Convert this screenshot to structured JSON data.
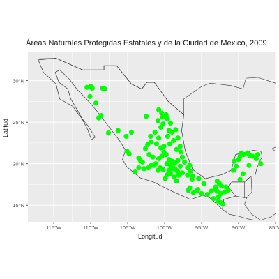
{
  "title": "Áreas Naturales Protegidas Estatales y de la Ciudad de México, 2009",
  "chart_data": {
    "type": "scatter",
    "title": "Áreas Naturales Protegidas Estatales y de la Ciudad de México, 2009",
    "xlabel": "Longitud",
    "ylabel": "Latitud",
    "xlim": [
      -118.5,
      -85
    ],
    "ylim": [
      13,
      33.5
    ],
    "x_ticks": [
      {
        "value": -115,
        "label": "115°W"
      },
      {
        "value": -110,
        "label": "110°W"
      },
      {
        "value": -105,
        "label": "105°W"
      },
      {
        "value": -100,
        "label": "100°W"
      },
      {
        "value": -95,
        "label": "95°W"
      },
      {
        "value": -90,
        "label": "90°W"
      },
      {
        "value": -85,
        "label": "85°W"
      }
    ],
    "y_ticks": [
      {
        "value": 15,
        "label": "15°N"
      },
      {
        "value": 20,
        "label": "20°N"
      },
      {
        "value": 25,
        "label": "25°N"
      },
      {
        "value": 30,
        "label": "30°N"
      }
    ],
    "grid": true,
    "panel_background": "#ebebeb",
    "grid_color": "#ffffff",
    "point_color": "#00ff00",
    "border_color": "#333333",
    "mexico_outline": [
      [
        -117.1,
        32.5
      ],
      [
        -114.7,
        32.7
      ],
      [
        -111.1,
        31.3
      ],
      [
        -108.2,
        31.3
      ],
      [
        -108.2,
        31.8
      ],
      [
        -106.5,
        31.8
      ],
      [
        -104.5,
        29.6
      ],
      [
        -103.1,
        29.0
      ],
      [
        -102.4,
        29.8
      ],
      [
        -101.4,
        29.8
      ],
      [
        -99.5,
        27.5
      ],
      [
        -97.4,
        25.9
      ],
      [
        -97.7,
        24.0
      ],
      [
        -97.2,
        21.5
      ],
      [
        -96.2,
        19.3
      ],
      [
        -94.5,
        18.2
      ],
      [
        -92.2,
        18.7
      ],
      [
        -91.0,
        19.2
      ],
      [
        -90.5,
        20.8
      ],
      [
        -90.4,
        21.1
      ],
      [
        -88.0,
        21.6
      ],
      [
        -87.0,
        21.5
      ],
      [
        -86.8,
        20.9
      ],
      [
        -87.5,
        19.5
      ],
      [
        -87.8,
        18.5
      ],
      [
        -88.3,
        18.5
      ],
      [
        -89.2,
        17.8
      ],
      [
        -90.9,
        17.8
      ],
      [
        -91.4,
        17.2
      ],
      [
        -90.4,
        16.1
      ],
      [
        -92.0,
        15.7
      ],
      [
        -92.2,
        14.5
      ],
      [
        -93.9,
        15.9
      ],
      [
        -94.8,
        16.2
      ],
      [
        -96.5,
        15.7
      ],
      [
        -98.8,
        16.6
      ],
      [
        -101.5,
        17.8
      ],
      [
        -103.3,
        18.3
      ],
      [
        -105.1,
        19.6
      ],
      [
        -105.7,
        20.5
      ],
      [
        -105.3,
        21.6
      ],
      [
        -106.1,
        22.8
      ],
      [
        -107.5,
        24.4
      ],
      [
        -109.3,
        26.5
      ],
      [
        -110.6,
        27.8
      ],
      [
        -111.8,
        28.9
      ],
      [
        -112.9,
        30.2
      ],
      [
        -114.2,
        31.3
      ],
      [
        -114.8,
        31.0
      ],
      [
        -114.3,
        29.8
      ],
      [
        -113.1,
        29.0
      ],
      [
        -112.7,
        27.8
      ],
      [
        -111.7,
        26.3
      ],
      [
        -110.4,
        24.1
      ],
      [
        -109.9,
        22.9
      ],
      [
        -109.4,
        23.2
      ],
      [
        -110.4,
        24.6
      ],
      [
        -111.6,
        25.9
      ],
      [
        -112.4,
        26.9
      ],
      [
        -114.2,
        27.8
      ],
      [
        -114.7,
        29.6
      ],
      [
        -116.4,
        31.0
      ],
      [
        -117.1,
        32.5
      ]
    ],
    "neighbor_lines": [
      [
        [
          -118.5,
          32.6
        ],
        [
          -114.7,
          32.7
        ],
        [
          -111.1,
          31.3
        ],
        [
          -108.2,
          31.3
        ],
        [
          -108.2,
          31.8
        ],
        [
          -106.5,
          31.8
        ],
        [
          -104.5,
          29.6
        ],
        [
          -103.1,
          29.0
        ],
        [
          -102.4,
          29.8
        ],
        [
          -101.4,
          29.8
        ],
        [
          -99.5,
          27.5
        ],
        [
          -97.4,
          25.9
        ],
        [
          -97.4,
          27.8
        ],
        [
          -95.0,
          29.3
        ],
        [
          -93.8,
          29.7
        ],
        [
          -91.0,
          29.4
        ],
        [
          -89.4,
          29.0
        ],
        [
          -89.0,
          30.3
        ],
        [
          -87.4,
          30.4
        ],
        [
          -85.0,
          29.7
        ]
      ],
      [
        [
          -88.3,
          18.5
        ],
        [
          -88.2,
          16.6
        ],
        [
          -88.9,
          15.9
        ],
        [
          -89.2,
          15.1
        ],
        [
          -88.2,
          13.9
        ],
        [
          -87.0,
          13.2
        ],
        [
          -85.6,
          13.6
        ],
        [
          -85.0,
          14.0
        ]
      ],
      [
        [
          -89.2,
          17.8
        ],
        [
          -89.2,
          15.9
        ],
        [
          -88.9,
          15.9
        ]
      ],
      [
        [
          -90.4,
          16.1
        ],
        [
          -89.2,
          15.9
        ]
      ],
      [
        [
          -92.2,
          14.5
        ],
        [
          -91.2,
          13.9
        ],
        [
          -90.1,
          13.7
        ],
        [
          -89.3,
          13.5
        ],
        [
          -88.5,
          13.3
        ],
        [
          -87.8,
          13.2
        ]
      ],
      [
        [
          -85.0,
          22.0
        ],
        [
          -85.5,
          21.8
        ],
        [
          -85.0,
          21.5
        ]
      ]
    ],
    "points": [
      [
        -110.5,
        29.2
      ],
      [
        -110.0,
        29.3
      ],
      [
        -109.8,
        29.1
      ],
      [
        -108.4,
        29.1
      ],
      [
        -108.1,
        29.0
      ],
      [
        -110.1,
        28.1
      ],
      [
        -109.3,
        27.3
      ],
      [
        -108.6,
        25.8
      ],
      [
        -108.9,
        25.5
      ],
      [
        -107.6,
        23.7
      ],
      [
        -106.3,
        24.0
      ],
      [
        -105.2,
        23.3
      ],
      [
        -104.5,
        23.8
      ],
      [
        -105.1,
        21.5
      ],
      [
        -104.8,
        21.2
      ],
      [
        -103.5,
        20.7
      ],
      [
        -103.3,
        20.4
      ],
      [
        -103.0,
        20.2
      ],
      [
        -103.5,
        19.5
      ],
      [
        -104.0,
        19.0
      ],
      [
        -102.8,
        19.4
      ],
      [
        -102.2,
        19.5
      ],
      [
        -101.8,
        19.8
      ],
      [
        -101.4,
        19.8
      ],
      [
        -101.2,
        20.0
      ],
      [
        -101.6,
        20.8
      ],
      [
        -102.1,
        21.1
      ],
      [
        -102.6,
        21.8
      ],
      [
        -102.3,
        22.3
      ],
      [
        -101.8,
        22.6
      ],
      [
        -101.9,
        23.3
      ],
      [
        -101.3,
        23.8
      ],
      [
        -100.5,
        24.4
      ],
      [
        -100.9,
        25.2
      ],
      [
        -100.3,
        25.6
      ],
      [
        -99.8,
        25.9
      ],
      [
        -99.6,
        25.4
      ],
      [
        -99.2,
        24.9
      ],
      [
        -100.2,
        24.8
      ],
      [
        -100.4,
        26.1
      ],
      [
        -100.8,
        26.5
      ],
      [
        -99.4,
        24.0
      ],
      [
        -99.0,
        23.8
      ],
      [
        -99.6,
        23.3
      ],
      [
        -98.8,
        22.8
      ],
      [
        -99.3,
        22.4
      ],
      [
        -100.1,
        22.1
      ],
      [
        -100.5,
        21.9
      ],
      [
        -100.1,
        21.4
      ],
      [
        -99.8,
        21.1
      ],
      [
        -100.4,
        20.9
      ],
      [
        -100.8,
        20.6
      ],
      [
        -99.4,
        20.5
      ],
      [
        -99.0,
        20.3
      ],
      [
        -98.6,
        20.1
      ],
      [
        -99.7,
        20.0
      ],
      [
        -99.2,
        19.8
      ],
      [
        -98.9,
        19.6
      ],
      [
        -99.1,
        19.3
      ],
      [
        -99.4,
        19.2
      ],
      [
        -98.5,
        19.3
      ],
      [
        -98.2,
        19.0
      ],
      [
        -97.9,
        19.7
      ],
      [
        -97.6,
        18.9
      ],
      [
        -98.1,
        18.6
      ],
      [
        -98.7,
        18.4
      ],
      [
        -99.2,
        18.8
      ],
      [
        -99.6,
        18.7
      ],
      [
        -100.2,
        19.3
      ],
      [
        -100.6,
        19.5
      ],
      [
        -100.9,
        19.2
      ],
      [
        -99.9,
        18.2
      ],
      [
        -98.4,
        17.9
      ],
      [
        -98.2,
        20.4
      ],
      [
        -97.6,
        20.8
      ],
      [
        -97.3,
        20.2
      ],
      [
        -97.8,
        21.4
      ],
      [
        -98.4,
        21.7
      ],
      [
        -97.9,
        22.1
      ],
      [
        -98.2,
        23.1
      ],
      [
        -98.5,
        24.1
      ],
      [
        -102.5,
        25.7
      ],
      [
        -96.6,
        19.8
      ],
      [
        -96.9,
        19.5
      ],
      [
        -96.5,
        19.1
      ],
      [
        -96.9,
        18.6
      ],
      [
        -96.3,
        18.1
      ],
      [
        -96.6,
        17.1
      ],
      [
        -96.8,
        16.8
      ],
      [
        -96.1,
        16.5
      ],
      [
        -95.6,
        16.7
      ],
      [
        -95.0,
        16.4
      ],
      [
        -94.2,
        16.3
      ],
      [
        -93.7,
        16.7
      ],
      [
        -93.2,
        16.9
      ],
      [
        -92.9,
        16.7
      ],
      [
        -92.4,
        16.4
      ],
      [
        -92.7,
        16.0
      ],
      [
        -92.8,
        15.5
      ],
      [
        -92.4,
        15.3
      ],
      [
        -92.1,
        15.1
      ],
      [
        -93.4,
        15.8
      ],
      [
        -94.7,
        17.6
      ],
      [
        -93.1,
        17.2
      ],
      [
        -92.3,
        17.3
      ],
      [
        -91.7,
        17.2
      ],
      [
        -92.9,
        17.9
      ],
      [
        -92.6,
        17.6
      ],
      [
        -91.9,
        16.6
      ],
      [
        -91.4,
        16.8
      ],
      [
        -90.7,
        19.2
      ],
      [
        -90.3,
        19.7
      ],
      [
        -90.6,
        20.3
      ],
      [
        -90.0,
        20.5
      ],
      [
        -89.8,
        20.9
      ],
      [
        -89.3,
        21.1
      ],
      [
        -89.6,
        21.3
      ],
      [
        -88.8,
        21.3
      ],
      [
        -88.5,
        21.0
      ],
      [
        -88.1,
        20.9
      ],
      [
        -87.4,
        21.1
      ],
      [
        -87.6,
        20.6
      ],
      [
        -87.0,
        20.0
      ],
      [
        -88.6,
        19.8
      ],
      [
        -89.4,
        18.8
      ],
      [
        -89.8,
        18.1
      ],
      [
        -96.2,
        18.5
      ],
      [
        -95.4,
        18.2
      ],
      [
        -101.1,
        22.4
      ],
      [
        -100.8,
        23.1
      ],
      [
        -95.5,
        16.9
      ]
    ]
  }
}
